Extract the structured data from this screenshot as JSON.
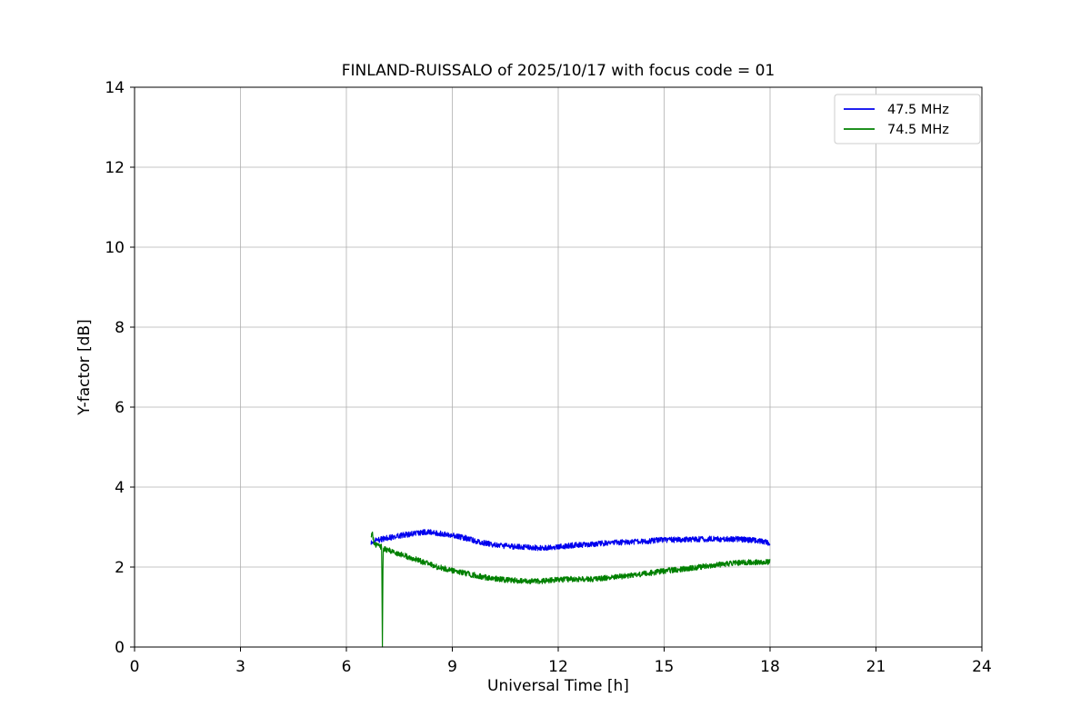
{
  "chart_data": {
    "type": "line",
    "title": "FINLAND-RUISSALO of 2025/10/17 with focus code = 01",
    "xlabel": "Universal Time [h]",
    "ylabel": "Y-factor [dB]",
    "xlim": [
      0,
      24
    ],
    "ylim": [
      0,
      14
    ],
    "xticks": [
      0,
      3,
      6,
      9,
      12,
      15,
      18,
      21,
      24
    ],
    "yticks": [
      0,
      2,
      4,
      6,
      8,
      10,
      12,
      14
    ],
    "grid": true,
    "legend_position": "upper right",
    "colors": {
      "grid": "#b0b0b0",
      "axis": "#000000",
      "background": "#ffffff",
      "legend_border": "#cccccc"
    },
    "series": [
      {
        "name": "47.5 MHz",
        "color": "#0000ee",
        "noise": 0.07,
        "x": [
          6.7,
          6.8,
          7.0,
          7.3,
          7.6,
          8.0,
          8.3,
          8.6,
          9.0,
          9.4,
          9.8,
          10.2,
          10.6,
          11.0,
          11.5,
          12.0,
          12.5,
          13.0,
          13.5,
          14.0,
          14.5,
          15.0,
          15.5,
          16.0,
          16.5,
          17.0,
          17.4,
          17.7,
          18.0
        ],
        "y": [
          2.6,
          2.65,
          2.7,
          2.75,
          2.8,
          2.85,
          2.88,
          2.85,
          2.8,
          2.72,
          2.62,
          2.55,
          2.52,
          2.5,
          2.48,
          2.5,
          2.55,
          2.58,
          2.6,
          2.63,
          2.65,
          2.68,
          2.68,
          2.7,
          2.7,
          2.7,
          2.68,
          2.65,
          2.6
        ]
      },
      {
        "name": "74.5 MHz",
        "color": "#008000",
        "noise": 0.07,
        "x": [
          6.7,
          6.73,
          6.78,
          6.85,
          7.0,
          7.02,
          7.04,
          7.2,
          7.5,
          8.0,
          8.5,
          9.0,
          9.5,
          10.0,
          10.5,
          11.0,
          11.5,
          12.0,
          12.5,
          13.0,
          13.5,
          14.0,
          14.5,
          15.0,
          15.5,
          16.0,
          16.5,
          17.0,
          17.5,
          18.0
        ],
        "y": [
          2.7,
          2.9,
          2.6,
          2.55,
          2.5,
          0.0,
          2.45,
          2.42,
          2.33,
          2.18,
          2.02,
          1.92,
          1.82,
          1.73,
          1.68,
          1.65,
          1.65,
          1.68,
          1.7,
          1.7,
          1.74,
          1.79,
          1.84,
          1.9,
          1.95,
          2.0,
          2.05,
          2.1,
          2.12,
          2.13
        ]
      }
    ]
  }
}
